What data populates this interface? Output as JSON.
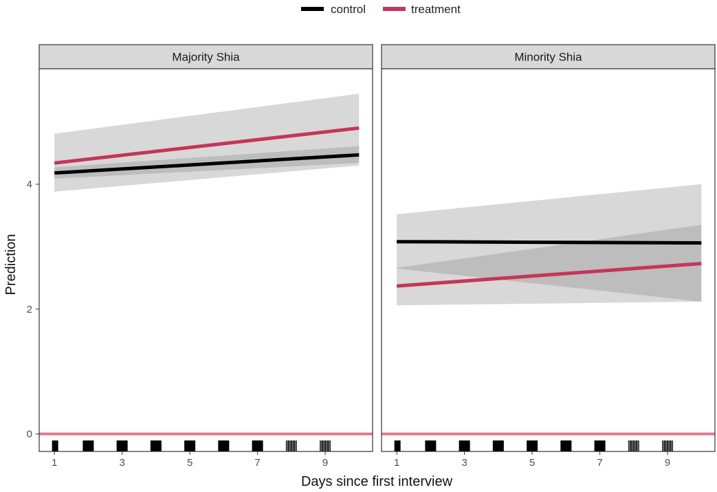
{
  "chart_data": {
    "type": "line",
    "xlabel": "Days since first interview",
    "ylabel": "Prediction",
    "x_ticks": [
      1,
      3,
      5,
      7,
      9
    ],
    "y_ticks": [
      0,
      2,
      4
    ],
    "xlim": [
      0.55,
      10.4
    ],
    "ylim": [
      -0.28,
      5.85
    ],
    "legend": {
      "position": "top",
      "entries": [
        {
          "name": "control",
          "color": "#000000"
        },
        {
          "name": "treatment",
          "color": "#c4365a"
        }
      ]
    },
    "reference_line": {
      "y": 0,
      "color": "#e07a8a"
    },
    "panels": [
      {
        "label": "Majority Shia",
        "series": [
          {
            "name": "control",
            "x": [
              1,
              10
            ],
            "y": [
              4.18,
              4.47
            ],
            "ci_low": [
              4.09,
              4.34
            ],
            "ci_high": [
              4.27,
              4.61
            ]
          },
          {
            "name": "treatment",
            "x": [
              1,
              10
            ],
            "y": [
              4.34,
              4.9
            ],
            "ci_low": [
              3.88,
              4.3
            ],
            "ci_high": [
              4.81,
              5.45
            ]
          }
        ],
        "rug": [
          1,
          2,
          3,
          4,
          5,
          6,
          7,
          8,
          9
        ]
      },
      {
        "label": "Minority Shia",
        "series": [
          {
            "name": "control",
            "x": [
              1,
              10
            ],
            "y": [
              3.08,
              3.06
            ],
            "ci_low": [
              2.65,
              2.12
            ],
            "ci_high": [
              3.52,
              4.0
            ]
          },
          {
            "name": "treatment",
            "x": [
              1,
              10
            ],
            "y": [
              2.37,
              2.73
            ],
            "ci_low": [
              2.06,
              2.12
            ],
            "ci_high": [
              2.66,
              3.35
            ]
          }
        ],
        "rug": [
          1,
          2,
          3,
          4,
          5,
          6,
          7,
          8,
          9
        ]
      }
    ]
  }
}
